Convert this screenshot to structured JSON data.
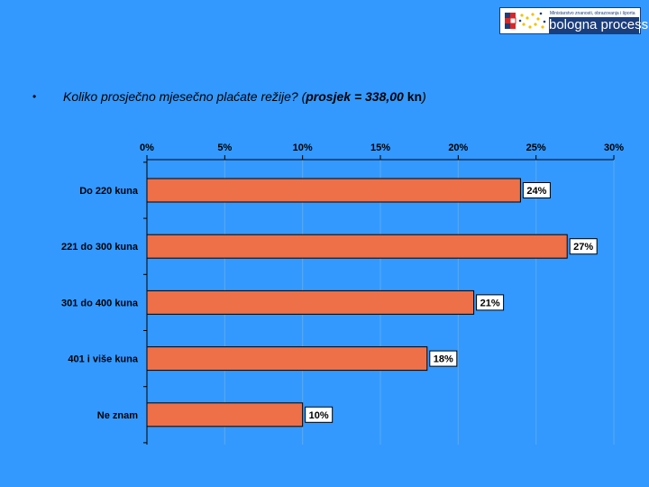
{
  "logo": {
    "tagline": "Ministarstvo znanosti, obrazovanja i športa",
    "name": "bologna process"
  },
  "question": {
    "bullet": "•",
    "text": "Koliko prosječno mjesečno plaćate režije? (",
    "avg_label": "prosjek = 338,00",
    "unit": "kn",
    "close": ")"
  },
  "colors": {
    "background": "#3399ff",
    "bar": "#ee7048",
    "grid": "#5aa9f0"
  },
  "chart_data": {
    "type": "bar",
    "orientation": "horizontal",
    "categories": [
      "Do 220 kuna",
      "221 do 300 kuna",
      "301 do 400 kuna",
      "401 i više kuna",
      "Ne znam"
    ],
    "values": [
      24,
      27,
      21,
      18,
      10
    ],
    "value_labels": [
      "24%",
      "27%",
      "21%",
      "18%",
      "10%"
    ],
    "xlim": [
      0,
      30
    ],
    "ticks": [
      0,
      5,
      10,
      15,
      20,
      25,
      30
    ],
    "tick_labels": [
      "0%",
      "5%",
      "10%",
      "15%",
      "20%",
      "25%",
      "30%"
    ],
    "axis_position": "top",
    "grid": true
  }
}
